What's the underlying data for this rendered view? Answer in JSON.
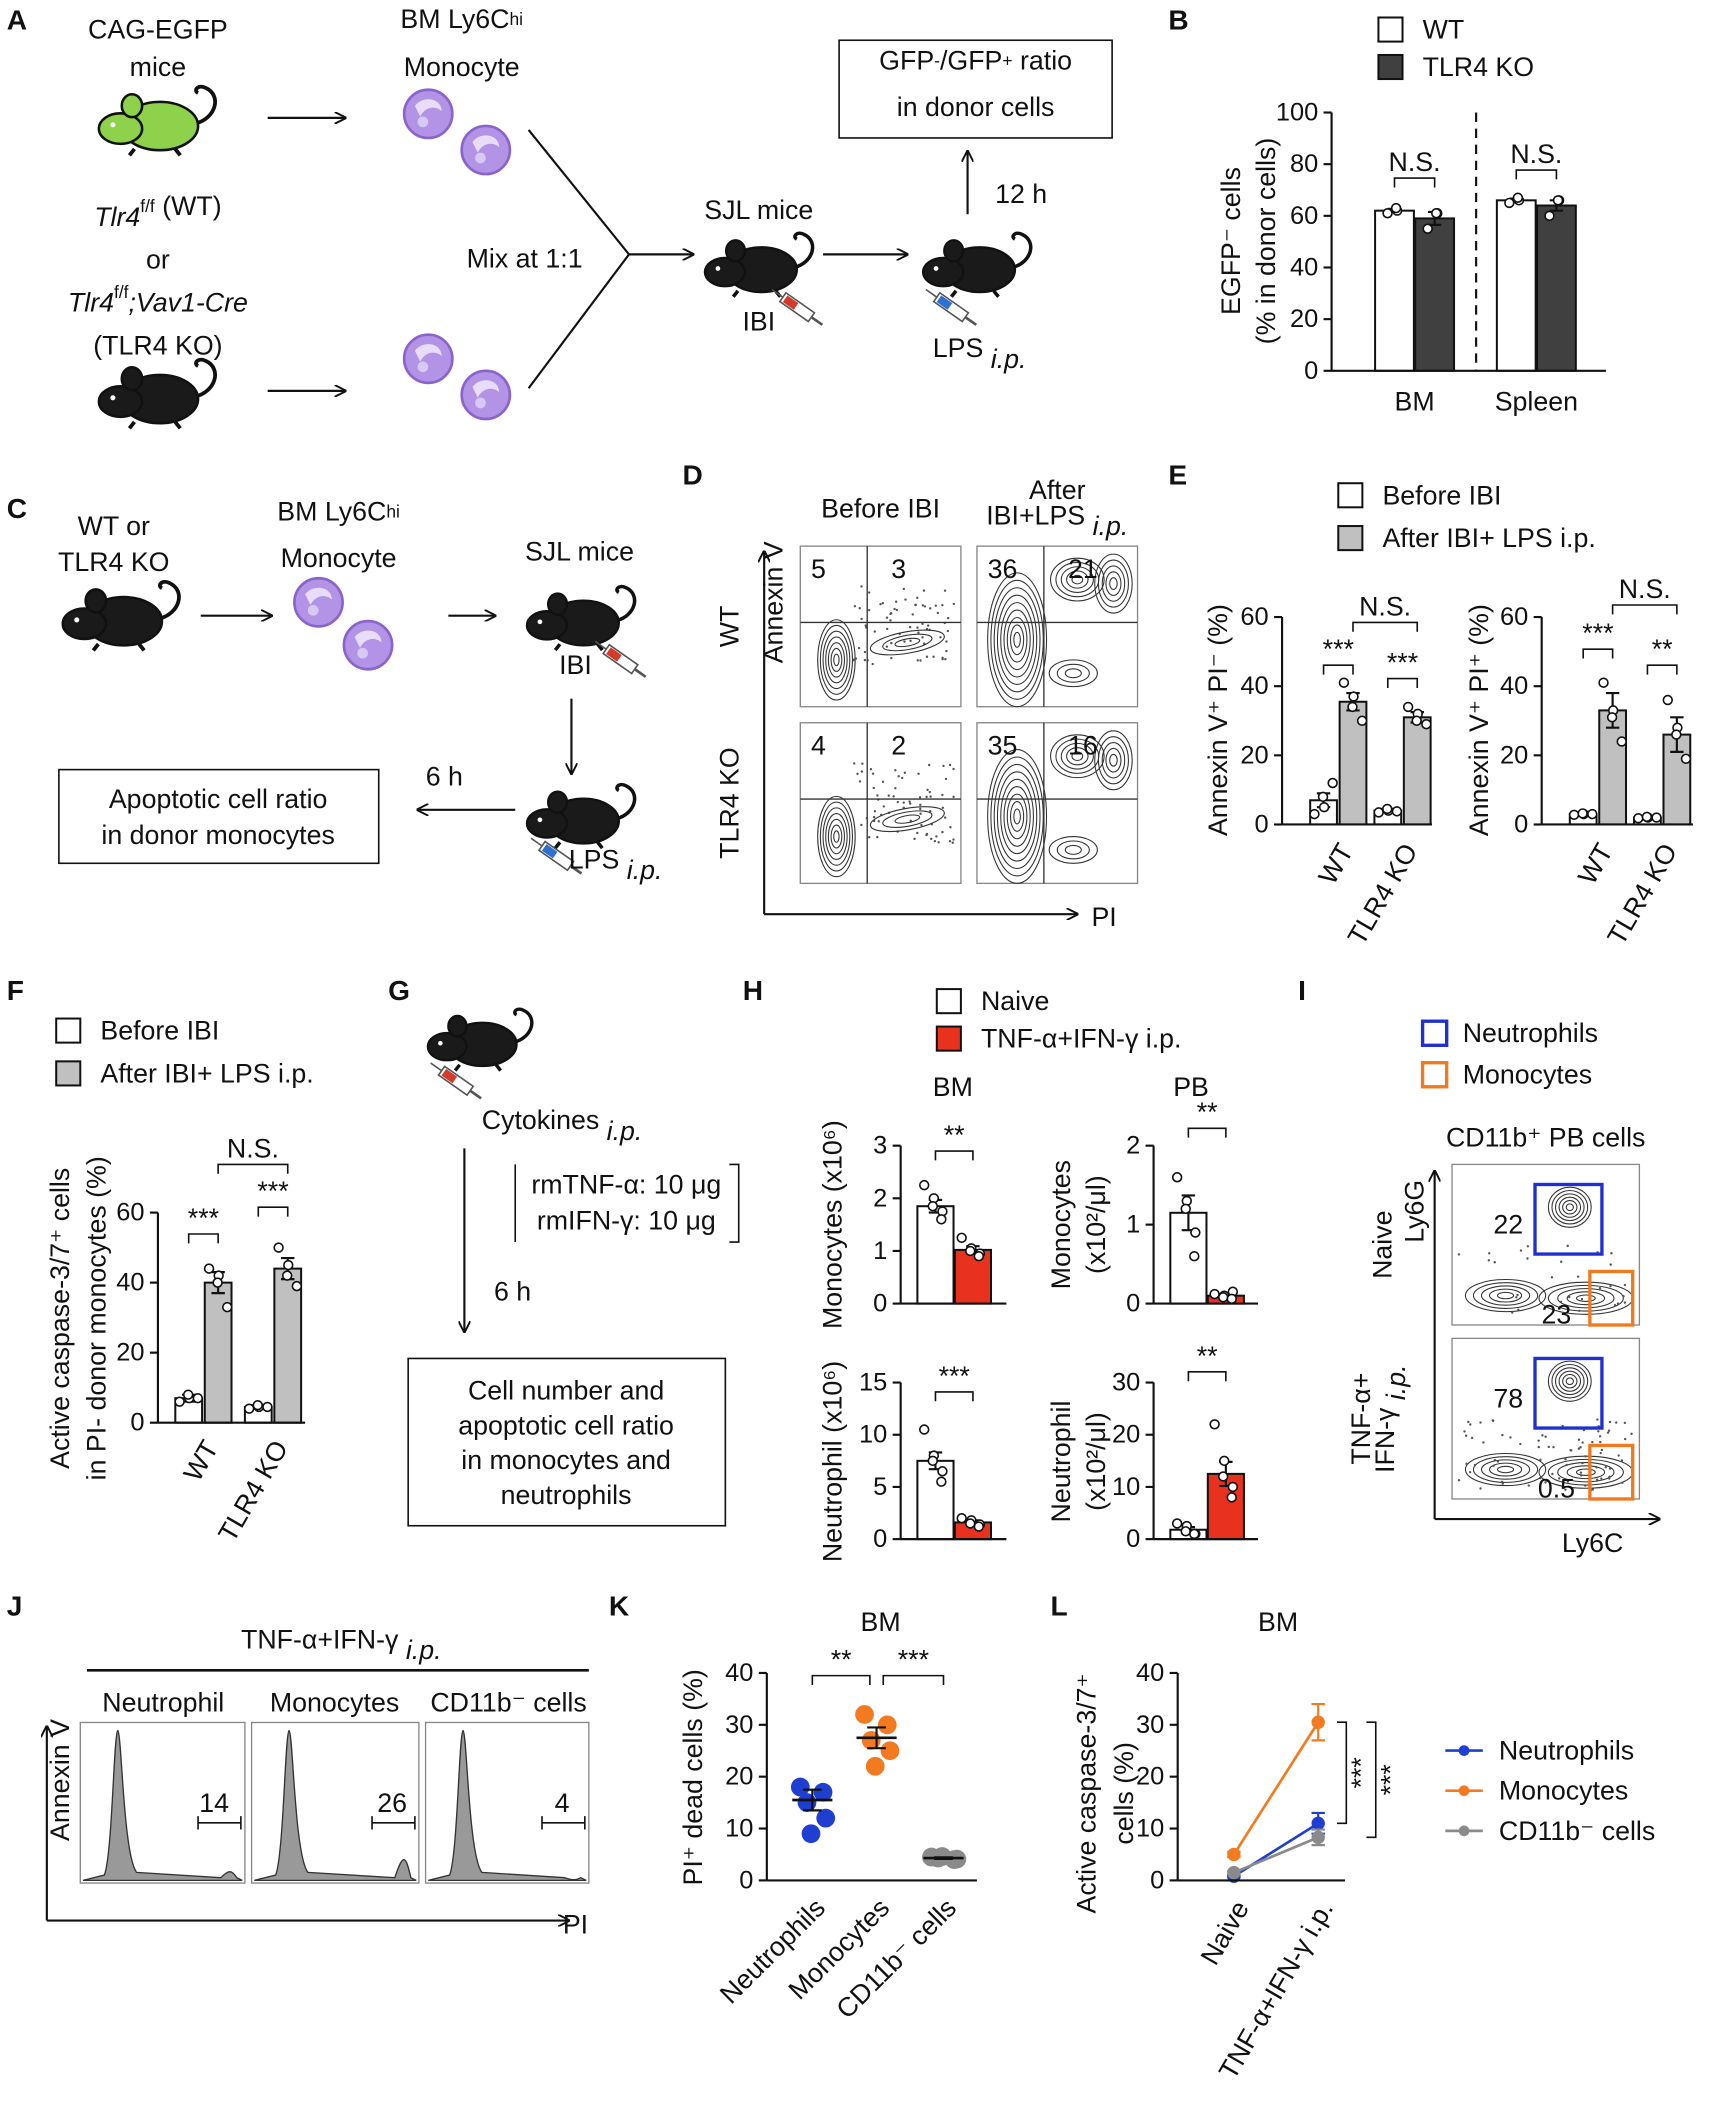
{
  "diagrams": {
    "A": {
      "panel": "A",
      "donor1": [
        "CAG-EGFP",
        "mice"
      ],
      "cells1": [
        [
          "BM Ly6C",
          {
            "sup": "hi"
          }
        ],
        "Monocyte"
      ],
      "donor2": [
        [
          {
            "i": "Tlr4"
          },
          {
            "sup": "f/f"
          },
          " (WT)"
        ],
        "or",
        [
          {
            "i": "Tlr4"
          },
          {
            "sup": "f/f"
          },
          {
            "i": ";Vav1-Cre"
          }
        ],
        "(TLR4 KO)"
      ],
      "mix": "Mix at 1:1",
      "recipient": "SJL mice",
      "injection": "IBI",
      "treatment": [
        "LPS ",
        {
          "i": "i.p."
        }
      ],
      "time": "12 h",
      "readout": [
        [
          "GFP",
          {
            "sup": "-"
          },
          "/GFP",
          {
            "sup": "+"
          },
          " ratio"
        ],
        "in donor cells"
      ]
    },
    "C": {
      "panel": "C",
      "donor": [
        "WT or",
        "TLR4 KO"
      ],
      "cells": [
        [
          "BM Ly6C",
          {
            "sup": "hi"
          }
        ],
        "Monocyte"
      ],
      "recipient": "SJL mice",
      "injection": "IBI",
      "treatment": [
        "LPS ",
        {
          "i": "i.p."
        }
      ],
      "time": "6 h",
      "readout": [
        "Apoptotic cell ratio",
        "in donor monocytes"
      ]
    },
    "G": {
      "panel": "G",
      "treatment": [
        "Cytokines ",
        {
          "i": "i.p."
        }
      ],
      "doses": [
        "rmTNF-α: 10 μg",
        "rmIFN-γ: 10 μg"
      ],
      "time": "6 h",
      "readout": [
        "Cell number and",
        "apoptotic cell ratio",
        "in monocytes and",
        "neutrophils"
      ]
    }
  },
  "flow": {
    "D": {
      "panel": "D",
      "columns": [
        [
          "Before IBI"
        ],
        [
          "After",
          [
            "IBI+LPS ",
            {
              "i": "i.p."
            }
          ]
        ]
      ],
      "rows": [
        "WT",
        "TLR4 KO"
      ],
      "yaxis": "Annexin V",
      "xaxis": "PI",
      "quadrants": [
        [
          5,
          3,
          36,
          21
        ],
        [
          4,
          2,
          35,
          16
        ]
      ],
      "label_color": "#e8321e"
    },
    "I": {
      "panel": "I",
      "gates": [
        {
          "name": "Neutrophils",
          "color": "#1f2fd0"
        },
        {
          "name": "Monocytes",
          "color": "#f07a20"
        }
      ],
      "population": "CD11b⁺ PB cells",
      "rows": [
        [
          "Naive"
        ],
        [
          "TNF-α+",
          [
            "IFN-γ ",
            {
              "i": "i.p."
            }
          ]
        ]
      ],
      "yaxis": "Ly6G",
      "xaxis": "Ly6C",
      "percentages": [
        [
          22,
          23
        ],
        [
          78,
          0.5
        ]
      ]
    },
    "J": {
      "panel": "J",
      "treatment": [
        "TNF-α+IFN-γ ",
        {
          "i": "i.p."
        }
      ],
      "columns": [
        "Neutrophil",
        "Monocytes",
        "CD11b⁻ cells"
      ],
      "yaxis": "Annexin V",
      "xaxis": "PI",
      "percentages": [
        14,
        26,
        4
      ],
      "label_color": "#e8321e"
    }
  },
  "chart_data": [
    {
      "type": "bar",
      "panel": "B",
      "ylabel": [
        "EGFP⁻ cells",
        "(% in donor cells)"
      ],
      "categories": [
        "BM",
        "Spleen"
      ],
      "series": [
        {
          "name": "WT",
          "color": "#ffffff",
          "values": [
            62,
            66
          ],
          "errors": [
            0.7,
            0.7
          ],
          "points": [
            [
              61,
              62,
              63
            ],
            [
              65,
              66,
              67
            ]
          ]
        },
        {
          "name": "TLR4 KO",
          "color": "#404040",
          "values": [
            59,
            64
          ],
          "errors": [
            2.5,
            2
          ],
          "points": [
            [
              55,
              61,
              61
            ],
            [
              60,
              66,
              66
            ]
          ]
        }
      ],
      "ylim": [
        0,
        100
      ],
      "yticks": [
        0,
        20,
        40,
        60,
        80,
        100
      ],
      "annotations": [
        "N.S.",
        "N.S."
      ]
    },
    {
      "type": "bar",
      "panel": "E",
      "ylabel": [
        "Annexin V⁺ PI⁻ (%)"
      ],
      "categories": [
        "WT",
        "TLR4 KO"
      ],
      "series": [
        {
          "name": "Before IBI",
          "color": "#ffffff",
          "values": [
            7,
            4
          ],
          "errors": [
            2,
            0.5
          ],
          "points": [
            [
              3,
              5,
              8,
              12
            ],
            [
              3.5,
              4,
              4.5,
              3.8
            ]
          ]
        },
        {
          "name": "After IBI+ LPS i.p.",
          "color": "#c0c0c0",
          "values": [
            35.5,
            31
          ],
          "errors": [
            2.5,
            1.5
          ],
          "points": [
            [
              41,
              37,
              34,
              30
            ],
            [
              34,
              32,
              30,
              29
            ]
          ]
        }
      ],
      "ylim": [
        0,
        60
      ],
      "yticks": [
        0,
        20,
        40,
        60
      ],
      "annotations": [
        "***",
        "***",
        "N.S."
      ]
    },
    {
      "type": "bar",
      "ylabel": [
        "Annexin V⁺ PI⁺ (%)"
      ],
      "categories": [
        "WT",
        "TLR4 KO"
      ],
      "series": [
        {
          "color": "#ffffff",
          "values": [
            3,
            2
          ],
          "errors": [
            0.4,
            0.3
          ],
          "points": [
            [
              2.8,
              3,
              3.2,
              3
            ],
            [
              1.8,
              2,
              2.2,
              2
            ]
          ]
        },
        {
          "color": "#c0c0c0",
          "values": [
            33,
            26
          ],
          "errors": [
            5,
            5
          ],
          "points": [
            [
              41,
              33,
              31,
              24
            ],
            [
              36,
              28,
              26,
              19
            ]
          ]
        }
      ],
      "ylim": [
        0,
        60
      ],
      "yticks": [
        0,
        20,
        40,
        60
      ],
      "annotations": [
        "***",
        "**",
        "N.S."
      ]
    },
    {
      "type": "bar",
      "panel": "F",
      "ylabel": [
        "Active caspase-3/7⁺ cells",
        "in PI- donor monocytes (%)"
      ],
      "categories": [
        "WT",
        "TLR4 KO"
      ],
      "series": [
        {
          "name": "Before IBI",
          "color": "#ffffff",
          "values": [
            7,
            4.5
          ],
          "errors": [
            1,
            0.5
          ],
          "points": [
            [
              6,
              7,
              8,
              7
            ],
            [
              4,
              4.5,
              5,
              4.5
            ]
          ]
        },
        {
          "name": "After IBI+ LPS i.p.",
          "color": "#c0c0c0",
          "values": [
            40,
            44
          ],
          "errors": [
            3,
            3
          ],
          "points": [
            [
              44,
              42,
              40,
              33
            ],
            [
              50,
              45,
              42,
              39
            ]
          ]
        }
      ],
      "ylim": [
        0,
        60
      ],
      "yticks": [
        0,
        20,
        40,
        60
      ],
      "annotations": [
        "***",
        "***",
        "N.S."
      ]
    },
    {
      "type": "bar",
      "panel": "H",
      "title": "BM",
      "ylabel": [
        "Monocytes (x10⁶)"
      ],
      "series": [
        {
          "name": "Naive",
          "color": "#ffffff",
          "values": [
            1.85
          ],
          "errors": [
            0.12
          ],
          "points": [
            [
              2.25,
              2.0,
              1.85,
              1.75,
              1.6
            ]
          ]
        },
        {
          "name": "TNF-α+IFN-γ i.p.",
          "color": "#e8321e",
          "values": [
            1.02
          ],
          "errors": [
            0.07
          ],
          "points": [
            [
              1.25,
              1.05,
              1.0,
              0.95,
              0.9
            ]
          ]
        }
      ],
      "ylim": [
        0,
        3
      ],
      "yticks": [
        0,
        1,
        2,
        3
      ],
      "annotations": [
        "**"
      ]
    },
    {
      "type": "bar",
      "title": "PB",
      "ylabel": [
        "Monocytes",
        "(x10²/μl)"
      ],
      "series": [
        {
          "color": "#ffffff",
          "values": [
            1.15
          ],
          "errors": [
            0.22
          ],
          "points": [
            [
              1.6,
              1.3,
              1.2,
              0.9,
              0.6
            ]
          ]
        },
        {
          "color": "#e8321e",
          "values": [
            0.1
          ],
          "errors": [
            0.02
          ],
          "points": [
            [
              0.12,
              0.1,
              0.08,
              0.15,
              0.06
            ]
          ]
        }
      ],
      "ylim": [
        0,
        2
      ],
      "yticks": [
        0,
        1,
        2
      ],
      "annotations": [
        "**"
      ]
    },
    {
      "type": "bar",
      "ylabel": [
        "Neutrophil (x10⁶)"
      ],
      "series": [
        {
          "color": "#ffffff",
          "values": [
            7.5
          ],
          "errors": [
            0.8
          ],
          "points": [
            [
              10.5,
              8,
              7.5,
              6.5,
              5.5
            ]
          ]
        },
        {
          "color": "#e8321e",
          "values": [
            1.6
          ],
          "errors": [
            0.2
          ],
          "points": [
            [
              2,
              1.8,
              1.5,
              1.4,
              1.2
            ]
          ]
        }
      ],
      "ylim": [
        0,
        15
      ],
      "yticks": [
        0,
        5,
        10,
        15
      ],
      "annotations": [
        "***"
      ]
    },
    {
      "type": "bar",
      "ylabel": [
        "Neutrophil",
        "(x10²/μl)"
      ],
      "series": [
        {
          "color": "#ffffff",
          "values": [
            1.8
          ],
          "errors": [
            0.5
          ],
          "points": [
            [
              3,
              2.5,
              1.5,
              1,
              1
            ]
          ]
        },
        {
          "color": "#e8321e",
          "values": [
            12.5
          ],
          "errors": [
            2.3
          ],
          "points": [
            [
              22,
              15,
              12,
              10,
              8
            ]
          ]
        }
      ],
      "ylim": [
        0,
        30
      ],
      "yticks": [
        0,
        10,
        20,
        30
      ],
      "annotations": [
        "**"
      ]
    },
    {
      "type": "dot",
      "panel": "K",
      "title": "BM",
      "ylabel": [
        "PI⁺ dead cells (%)"
      ],
      "categories": [
        "Neutrophils",
        "Monocytes",
        "CD11b⁻ cells"
      ],
      "colors": [
        "#1f3fd0",
        "#f47a20",
        "#8a8a8a"
      ],
      "values": [
        15.5,
        27.5,
        4.3
      ],
      "errors": [
        2,
        2,
        0.15
      ],
      "points": [
        [
          18,
          17,
          15,
          12,
          9
        ],
        [
          32,
          30,
          27,
          25,
          22
        ],
        [
          4.5,
          4,
          4.3,
          4.1,
          4.6
        ]
      ],
      "ylim": [
        0,
        40
      ],
      "yticks": [
        0,
        10,
        20,
        30,
        40
      ],
      "annotations": [
        "**",
        "***"
      ]
    },
    {
      "type": "line",
      "panel": "L",
      "title": "BM",
      "ylabel": [
        "Active caspase-3/7⁺",
        "cells (%)"
      ],
      "categories": [
        "Naive",
        "TNF-α+IFN-γ i.p."
      ],
      "series": [
        {
          "name": "Neutrophils",
          "color": "#1f3fd0",
          "values": [
            0.8,
            11
          ],
          "errors": [
            0.2,
            2
          ]
        },
        {
          "name": "Monocytes",
          "color": "#f47a20",
          "values": [
            5,
            30.5
          ],
          "errors": [
            0.5,
            3.5
          ]
        },
        {
          "name": "CD11b⁻ cells",
          "color": "#8a8a8a",
          "values": [
            1.5,
            8.3
          ],
          "errors": [
            0.3,
            1.5
          ]
        }
      ],
      "ylim": [
        0,
        40
      ],
      "yticks": [
        0,
        10,
        20,
        30,
        40
      ],
      "annotations": [
        "***",
        "***"
      ]
    }
  ]
}
